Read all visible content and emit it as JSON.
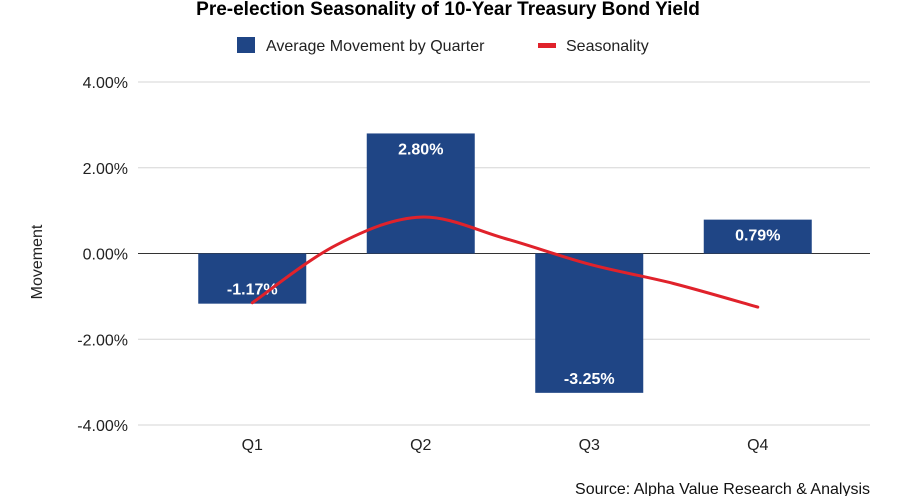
{
  "chart_data": {
    "type": "bar",
    "title": "Pre-election Seasonality of 10-Year Treasury Bond Yield",
    "ylabel": "Movement",
    "xlabel": "",
    "categories": [
      "Q1",
      "Q2",
      "Q3",
      "Q4"
    ],
    "ylim": [
      -4,
      4
    ],
    "yticks": [
      4,
      2,
      0,
      -2,
      -4
    ],
    "ytick_labels": [
      "4.00%",
      "2.00%",
      "0.00%",
      "-2.00%",
      "-4.00%"
    ],
    "grid": true,
    "legend_position": "top-center",
    "series": [
      {
        "name": "Average Movement by Quarter",
        "type": "bar",
        "color": "#1f4585",
        "values": [
          -1.17,
          2.8,
          -3.25,
          0.79
        ],
        "labels": [
          "-1.17%",
          "2.80%",
          "-3.25%",
          "0.79%"
        ]
      },
      {
        "name": "Seasonality",
        "type": "line",
        "color": "#e0222b",
        "curve": "smooth",
        "x": [
          1,
          1.5,
          2,
          2.5,
          3,
          3.5,
          4
        ],
        "values": [
          -1.15,
          0.2,
          0.85,
          0.35,
          -0.25,
          -0.7,
          -1.25
        ]
      }
    ],
    "source": "Source: Alpha Value Research & Analysis"
  }
}
